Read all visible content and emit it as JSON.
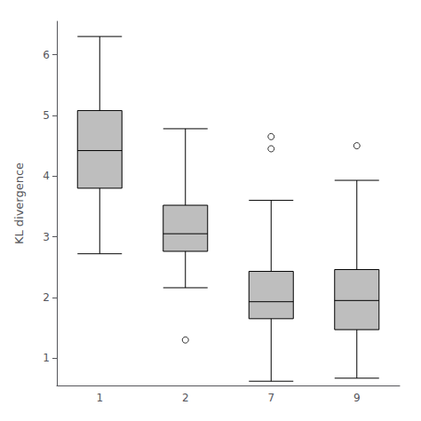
{
  "chart_data": {
    "type": "boxplot",
    "categories": [
      "1",
      "2",
      "7",
      "9"
    ],
    "ylabel": "KL divergence",
    "ylim": [
      0.55,
      6.55
    ],
    "yticks": [
      1,
      2,
      3,
      4,
      5,
      6
    ],
    "whisker_low": [
      2.72,
      2.16,
      0.62,
      0.67
    ],
    "q1": [
      3.8,
      2.76,
      1.65,
      1.47
    ],
    "median": [
      4.42,
      3.05,
      1.93,
      1.95
    ],
    "q3": [
      5.08,
      3.52,
      2.43,
      2.46
    ],
    "whisker_high": [
      6.3,
      4.78,
      3.6,
      3.93
    ],
    "outliers": [
      [],
      [
        1.3
      ],
      [
        4.45,
        4.65
      ],
      [
        4.5
      ]
    ],
    "color": "#bebebe",
    "grid": false
  }
}
